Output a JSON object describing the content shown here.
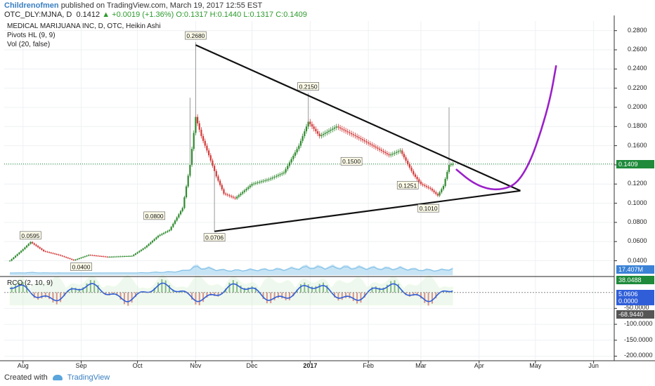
{
  "header": {
    "publisher": "Childrenofmen",
    "published_text": "published on TradingView.com, March 19, 2017 12:55 EST",
    "symbol_line": "OTC_DLY:MJNA, D",
    "last": "0.1412",
    "change": "+0.0019 (+1.36%)",
    "ohlc": "O:0.1317 H:0.1440 L:0.1317 C:0.1409"
  },
  "legends": [
    "MEDICAL MARIJUANA INC, D, OTC, Heikin Ashi",
    "Pivots HL (9, 9)",
    "Vol (20, false)"
  ],
  "rci_legend": "RCO (2, 10, 9)",
  "footer": {
    "created_with": "Created with",
    "brand": "TradingView"
  },
  "colors": {
    "up": "#2f8a2f",
    "down": "#d33a3a",
    "projection": "#9b20c9",
    "price_badge": "#1e8a3a",
    "vol_badge": "#3b82d6",
    "rci_badge_a": "#1e8a3a",
    "rci_badge_b": "#2f5ed8",
    "rci_badge_c": "#555555"
  },
  "chart_data": {
    "type": "line",
    "title": "MEDICAL MARIJUANA INC, D, OTC, Heikin Ashi",
    "x_ticks": [
      "Aug",
      "Sep",
      "Oct",
      "Nov",
      "Dec",
      "2017",
      "Feb",
      "Mar",
      "Apr",
      "May",
      "Jun"
    ],
    "y_ticks": [
      "0.2800",
      "0.2600",
      "0.2400",
      "0.2200",
      "0.2000",
      "0.1800",
      "0.1600",
      "0.1400",
      "0.1200",
      "0.1000",
      "0.0800",
      "0.0600",
      "0.0400"
    ],
    "ylim": [
      0.025,
      0.29
    ],
    "rci_ticks": [
      "-50.0000",
      "-100.0000",
      "-150.0000",
      "-200.0000"
    ],
    "rci_ylim": [
      -210,
      50
    ],
    "price_path": [
      [
        "2016-07-25",
        0.04
      ],
      [
        "2016-08-01",
        0.052
      ],
      [
        "2016-08-05",
        0.0595
      ],
      [
        "2016-08-12",
        0.05
      ],
      [
        "2016-08-20",
        0.046
      ],
      [
        "2016-08-28",
        0.0405
      ],
      [
        "2016-09-05",
        0.046
      ],
      [
        "2016-09-15",
        0.044
      ],
      [
        "2016-09-28",
        0.045
      ],
      [
        "2016-10-05",
        0.054
      ],
      [
        "2016-10-12",
        0.066
      ],
      [
        "2016-10-18",
        0.072
      ],
      [
        "2016-10-25",
        0.095
      ],
      [
        "2016-10-29",
        0.14
      ],
      [
        "2016-11-01",
        0.19
      ],
      [
        "2016-11-04",
        0.17
      ],
      [
        "2016-11-08",
        0.15
      ],
      [
        "2016-11-12",
        0.128
      ],
      [
        "2016-11-16",
        0.11
      ],
      [
        "2016-11-22",
        0.105
      ],
      [
        "2016-12-01",
        0.12
      ],
      [
        "2016-12-10",
        0.125
      ],
      [
        "2016-12-18",
        0.132
      ],
      [
        "2016-12-26",
        0.16
      ],
      [
        "2016-12-31",
        0.185
      ],
      [
        "2017-01-06",
        0.17
      ],
      [
        "2017-01-15",
        0.18
      ],
      [
        "2017-01-25",
        0.17
      ],
      [
        "2017-02-05",
        0.158
      ],
      [
        "2017-02-12",
        0.15
      ],
      [
        "2017-02-18",
        0.155
      ],
      [
        "2017-02-25",
        0.13
      ],
      [
        "2017-03-01",
        0.12
      ],
      [
        "2017-03-06",
        0.115
      ],
      [
        "2017-03-10",
        0.108
      ],
      [
        "2017-03-13",
        0.118
      ],
      [
        "2017-03-16",
        0.14
      ],
      [
        "2017-03-18",
        0.1409
      ]
    ],
    "pivot_labels": [
      {
        "date": "2016-08-05",
        "value": 0.0595,
        "label": "0.0595",
        "pos": "above"
      },
      {
        "date": "2016-09-01",
        "value": 0.04,
        "label": "0.0400",
        "pos": "below"
      },
      {
        "date": "2016-10-10",
        "value": 0.08,
        "label": "0.0800",
        "pos": "above"
      },
      {
        "date": "2016-11-01",
        "value": 0.268,
        "label": "0.2680",
        "pos": "above"
      },
      {
        "date": "2016-11-11",
        "value": 0.0706,
        "label": "0.0706",
        "pos": "below"
      },
      {
        "date": "2016-12-31",
        "value": 0.215,
        "label": "0.2150",
        "pos": "above"
      },
      {
        "date": "2017-01-23",
        "value": 0.15,
        "label": "0.1500",
        "pos": "below"
      },
      {
        "date": "2017-02-22",
        "value": 0.1251,
        "label": "0.1251",
        "pos": "below"
      },
      {
        "date": "2017-03-05",
        "value": 0.101,
        "label": "0.1010",
        "pos": "below"
      }
    ],
    "trendlines": [
      {
        "from": [
          "2016-11-01",
          0.265
        ],
        "to": [
          "2017-04-23",
          0.113
        ]
      },
      {
        "from": [
          "2016-11-11",
          0.0706
        ],
        "to": [
          "2017-04-23",
          0.113
        ]
      }
    ],
    "projection": [
      [
        "2017-03-20",
        0.135
      ],
      [
        "2017-03-28",
        0.122
      ],
      [
        "2017-04-05",
        0.115
      ],
      [
        "2017-04-13",
        0.114
      ],
      [
        "2017-04-21",
        0.12
      ],
      [
        "2017-04-28",
        0.142
      ],
      [
        "2017-05-04",
        0.175
      ],
      [
        "2017-05-09",
        0.21
      ],
      [
        "2017-05-12",
        0.243
      ]
    ],
    "last_price_label": "0.1409",
    "volume_label": "17.407M",
    "rci_labels": [
      "38.0488",
      "5.0606",
      "0.0000",
      "-68.9440"
    ]
  }
}
